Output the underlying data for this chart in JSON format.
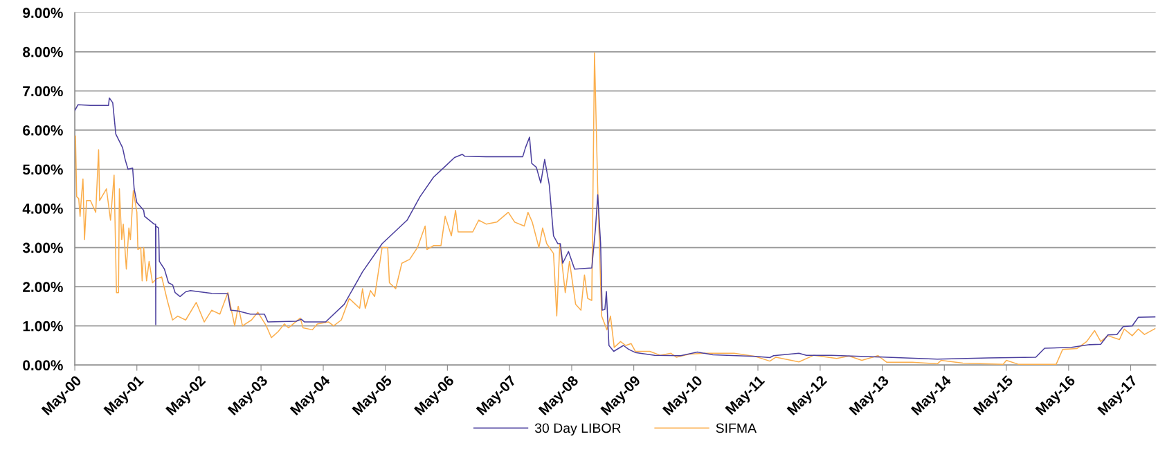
{
  "chart_data": {
    "type": "line",
    "series": [
      {
        "name": "30 Day LIBOR",
        "color": "#4b3f9e",
        "x": [
          "2000-05-01",
          "2000-05-20",
          "2000-08-01",
          "2000-11-15",
          "2000-11-20",
          "2000-12-10",
          "2000-12-28",
          "2001-02-06",
          "2001-02-21",
          "2001-03-10",
          "2001-04-06",
          "2001-04-15",
          "2001-05-01",
          "2001-06-10",
          "2001-06-15",
          "2001-08-10",
          "2001-08-19",
          "2001-08-20",
          "2001-08-21",
          "2001-09-06",
          "2001-09-10",
          "2001-10-10",
          "2001-11-03",
          "2001-11-27",
          "2001-12-12",
          "2002-01-10",
          "2002-02-12",
          "2002-03-12",
          "2002-07-15",
          "2002-10-18",
          "2002-11-03",
          "2002-12-18",
          "2003-02-27",
          "2003-05-21",
          "2003-06-10",
          "2003-11-24",
          "2003-12-24",
          "2004-01-12",
          "2004-05-15",
          "2004-09-01",
          "2004-12-18",
          "2005-04-12",
          "2005-09-06",
          "2005-11-21",
          "2006-02-09",
          "2006-04-24",
          "2006-06-12",
          "2006-07-27",
          "2006-08-12",
          "2006-12-15",
          "2007-07-18",
          "2007-08-03",
          "2007-08-27",
          "2007-09-09",
          "2007-10-06",
          "2007-11-01",
          "2007-11-24",
          "2007-12-21",
          "2008-01-15",
          "2008-02-09",
          "2008-02-24",
          "2008-03-09",
          "2008-04-12",
          "2008-05-18",
          "2008-08-27",
          "2008-09-18",
          "2008-10-01",
          "2008-10-18",
          "2008-10-27",
          "2008-11-12",
          "2008-11-21",
          "2008-12-06",
          "2009-01-03",
          "2009-03-01",
          "2009-04-01",
          "2009-05-10",
          "2009-09-01",
          "2010-02-01",
          "2010-05-10",
          "2010-08-10",
          "2011-04-15",
          "2011-07-10",
          "2011-08-01",
          "2011-12-28",
          "2012-02-10",
          "2012-07-06",
          "2013-05-28",
          "2014-03-21",
          "2015-01-15",
          "2015-10-21",
          "2015-12-12",
          "2016-05-18",
          "2016-09-01",
          "2016-11-06",
          "2016-12-18",
          "2017-02-09",
          "2017-03-18",
          "2017-05-10",
          "2017-06-15",
          "2017-09-21"
        ],
        "values": [
          6.5,
          6.65,
          6.63,
          6.63,
          6.82,
          6.7,
          5.9,
          5.55,
          5.25,
          5.0,
          5.03,
          4.5,
          4.15,
          3.95,
          3.8,
          3.6,
          3.6,
          1.03,
          3.55,
          3.5,
          2.65,
          2.45,
          2.1,
          2.05,
          1.85,
          1.75,
          1.87,
          1.9,
          1.83,
          1.82,
          1.4,
          1.38,
          1.3,
          1.3,
          1.1,
          1.12,
          1.17,
          1.1,
          1.1,
          1.55,
          2.38,
          3.1,
          3.7,
          4.3,
          4.8,
          5.1,
          5.3,
          5.38,
          5.33,
          5.32,
          5.32,
          5.55,
          5.82,
          5.15,
          5.05,
          4.65,
          5.25,
          4.6,
          3.3,
          3.1,
          3.1,
          2.6,
          2.9,
          2.45,
          2.48,
          3.5,
          4.35,
          3.1,
          1.4,
          1.42,
          1.88,
          0.5,
          0.35,
          0.5,
          0.4,
          0.32,
          0.25,
          0.24,
          0.33,
          0.26,
          0.22,
          0.19,
          0.24,
          0.3,
          0.25,
          0.25,
          0.2,
          0.15,
          0.18,
          0.2,
          0.43,
          0.45,
          0.52,
          0.53,
          0.77,
          0.78,
          0.98,
          1.0,
          1.22,
          1.23
        ]
      },
      {
        "name": "SIFMA",
        "color": "#fbae4c",
        "x": [
          "2000-05-05",
          "2000-05-12",
          "2000-05-24",
          "2000-06-01",
          "2000-06-09",
          "2000-06-18",
          "2000-06-27",
          "2000-07-09",
          "2000-08-01",
          "2000-09-01",
          "2000-09-18",
          "2000-09-24",
          "2000-11-03",
          "2000-11-27",
          "2000-12-18",
          "2001-01-01",
          "2001-01-13",
          "2001-01-18",
          "2001-02-01",
          "2001-02-10",
          "2001-02-28",
          "2001-03-15",
          "2001-03-24",
          "2001-04-10",
          "2001-05-01",
          "2001-05-07",
          "2001-05-24",
          "2001-06-01",
          "2001-06-10",
          "2001-06-27",
          "2001-07-12",
          "2001-08-01",
          "2001-08-24",
          "2001-09-24",
          "2001-10-27",
          "2001-11-27",
          "2001-12-27",
          "2002-02-12",
          "2002-04-15",
          "2002-06-01",
          "2002-07-15",
          "2002-09-01",
          "2002-10-18",
          "2002-11-27",
          "2002-12-18",
          "2003-01-12",
          "2003-03-06",
          "2003-04-12",
          "2003-06-01",
          "2003-07-01",
          "2003-08-09",
          "2003-09-15",
          "2003-10-09",
          "2003-12-18",
          "2004-01-03",
          "2004-02-27",
          "2004-03-27",
          "2004-06-01",
          "2004-07-01",
          "2004-08-15",
          "2004-10-01",
          "2004-12-01",
          "2004-12-18",
          "2005-01-03",
          "2005-02-03",
          "2005-02-27",
          "2005-04-12",
          "2005-05-15",
          "2005-05-25",
          "2005-07-01",
          "2005-08-06",
          "2005-09-21",
          "2005-11-06",
          "2005-12-21",
          "2006-01-01",
          "2006-02-09",
          "2006-03-24",
          "2006-04-18",
          "2006-05-24",
          "2006-06-18",
          "2006-07-03",
          "2006-09-27",
          "2006-11-01",
          "2006-12-15",
          "2007-02-15",
          "2007-04-24",
          "2007-06-01",
          "2007-07-27",
          "2007-08-18",
          "2007-09-12",
          "2007-10-21",
          "2007-11-12",
          "2007-12-06",
          "2008-01-15",
          "2008-02-03",
          "2008-02-21",
          "2008-03-24",
          "2008-04-18",
          "2008-05-24",
          "2008-06-24",
          "2008-07-15",
          "2008-08-03",
          "2008-08-27",
          "2008-09-12",
          "2008-10-01",
          "2008-10-24",
          "2008-11-24",
          "2008-12-15",
          "2009-01-06",
          "2009-02-12",
          "2009-03-15",
          "2009-04-15",
          "2009-05-10",
          "2009-08-03",
          "2009-10-03",
          "2009-12-06",
          "2010-01-06",
          "2010-03-24",
          "2010-06-24",
          "2010-12-12",
          "2011-04-15",
          "2011-07-10",
          "2011-08-15",
          "2011-12-28",
          "2012-03-25",
          "2012-08-06",
          "2012-10-18",
          "2013-01-01",
          "2013-04-06",
          "2013-05-28",
          "2013-10-24",
          "2014-03-21",
          "2014-04-12",
          "2014-08-18",
          "2015-04-12",
          "2015-05-01",
          "2015-07-10",
          "2016-02-18",
          "2016-03-27",
          "2016-06-18",
          "2016-08-15",
          "2016-10-01",
          "2016-11-06",
          "2016-12-18",
          "2017-02-24",
          "2017-03-24",
          "2017-05-10",
          "2017-06-15",
          "2017-07-21",
          "2017-09-21"
        ],
        "values": [
          5.85,
          4.3,
          4.25,
          3.8,
          4.3,
          4.75,
          3.2,
          4.2,
          4.2,
          3.9,
          5.5,
          4.2,
          4.5,
          3.7,
          4.85,
          1.85,
          1.85,
          4.5,
          3.2,
          3.6,
          2.45,
          3.5,
          3.2,
          4.45,
          3.9,
          2.95,
          3.0,
          2.15,
          3.0,
          2.15,
          2.65,
          2.1,
          2.2,
          2.25,
          1.65,
          1.15,
          1.25,
          1.15,
          1.6,
          1.1,
          1.4,
          1.3,
          1.85,
          1.0,
          1.5,
          1.0,
          1.15,
          1.35,
          1.0,
          0.7,
          0.85,
          1.05,
          0.95,
          1.2,
          0.95,
          0.9,
          1.05,
          1.1,
          1.0,
          1.15,
          1.7,
          1.45,
          1.95,
          1.45,
          1.9,
          1.75,
          3.0,
          3.0,
          2.1,
          1.95,
          2.6,
          2.7,
          3.0,
          3.55,
          2.95,
          3.05,
          3.05,
          3.8,
          3.3,
          3.95,
          3.4,
          3.4,
          3.7,
          3.6,
          3.65,
          3.9,
          3.65,
          3.55,
          3.9,
          3.65,
          3.0,
          3.5,
          3.1,
          2.85,
          1.25,
          3.1,
          1.85,
          2.65,
          1.55,
          1.4,
          2.3,
          1.7,
          1.65,
          7.98,
          4.5,
          1.25,
          0.9,
          1.25,
          0.45,
          0.6,
          0.5,
          0.55,
          0.35,
          0.35,
          0.25,
          0.3,
          0.2,
          0.28,
          0.3,
          0.3,
          0.22,
          0.1,
          0.2,
          0.08,
          0.25,
          0.17,
          0.23,
          0.12,
          0.24,
          0.07,
          0.07,
          0.03,
          0.12,
          0.05,
          0.02,
          0.12,
          0.02,
          0.02,
          0.4,
          0.42,
          0.6,
          0.88,
          0.6,
          0.75,
          0.65,
          0.92,
          0.75,
          0.92,
          0.78,
          0.93
        ]
      }
    ],
    "xlim": [
      "2000-05-01",
      "2017-09-25"
    ],
    "xticks": [
      {
        "value": "2000-05-01",
        "label": "May-00"
      },
      {
        "value": "2001-05-01",
        "label": "May-01"
      },
      {
        "value": "2002-05-01",
        "label": "May-02"
      },
      {
        "value": "2003-05-01",
        "label": "May-03"
      },
      {
        "value": "2004-05-01",
        "label": "May-04"
      },
      {
        "value": "2005-05-01",
        "label": "May-05"
      },
      {
        "value": "2006-05-01",
        "label": "May-06"
      },
      {
        "value": "2007-05-01",
        "label": "May-07"
      },
      {
        "value": "2008-05-01",
        "label": "May-08"
      },
      {
        "value": "2009-05-01",
        "label": "May-09"
      },
      {
        "value": "2010-05-01",
        "label": "May-10"
      },
      {
        "value": "2011-05-01",
        "label": "May-11"
      },
      {
        "value": "2012-05-01",
        "label": "May-12"
      },
      {
        "value": "2013-05-01",
        "label": "May-13"
      },
      {
        "value": "2014-05-01",
        "label": "May-14"
      },
      {
        "value": "2015-05-01",
        "label": "May-15"
      },
      {
        "value": "2016-05-01",
        "label": "May-16"
      },
      {
        "value": "2017-05-01",
        "label": "May-17"
      }
    ],
    "ylim": [
      0,
      9
    ],
    "yticks": [
      {
        "value": 0,
        "label": "0.00%"
      },
      {
        "value": 1,
        "label": "1.00%"
      },
      {
        "value": 2,
        "label": "2.00%"
      },
      {
        "value": 3,
        "label": "3.00%"
      },
      {
        "value": 4,
        "label": "4.00%"
      },
      {
        "value": 5,
        "label": "5.00%"
      },
      {
        "value": 6,
        "label": "6.00%"
      },
      {
        "value": 7,
        "label": "7.00%"
      },
      {
        "value": 8,
        "label": "8.00%"
      },
      {
        "value": 9,
        "label": "9.00%"
      }
    ],
    "grid": "y",
    "legend": "bottom",
    "marker": "none",
    "line_style": "solid"
  }
}
